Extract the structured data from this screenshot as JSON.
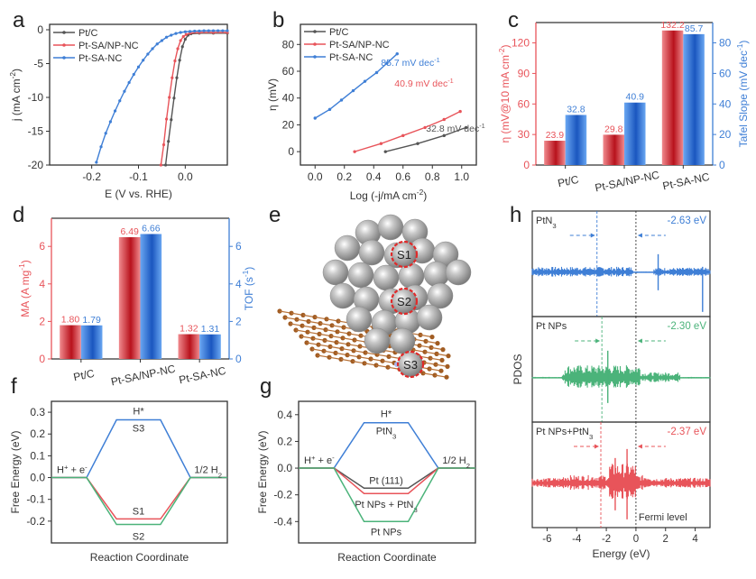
{
  "colors": {
    "black": "#555555",
    "red": "#e8545a",
    "blue": "#3f7fd6",
    "green": "#4bb37a",
    "bar_red": "#d9363e",
    "bar_blue": "#2e6fd3",
    "axis": "#333333"
  },
  "chart_data": [
    {
      "panel": "a",
      "type": "line",
      "xlabel": "E (V vs. RHE)",
      "ylabel": "j (mA cm-2)",
      "xlim": [
        -0.29,
        0.09
      ],
      "ylim": [
        -20,
        0.8
      ],
      "xticks": [
        "-0.2",
        "-0.1",
        "0.0"
      ],
      "xtick_values": [
        -0.2,
        -0.1,
        0.0
      ],
      "yticks": [
        "0",
        "-5",
        "-10",
        "-15",
        "-20"
      ],
      "ytick_values": [
        0,
        -5,
        -10,
        -15,
        -20
      ],
      "legend": [
        "Pt/C",
        "Pt-SA/NP-NC",
        "Pt-SA-NC"
      ],
      "legend_position": "top-left",
      "series": [
        {
          "name": "Pt/C",
          "color_key": "black",
          "x": [
            -0.042,
            -0.036,
            -0.03,
            -0.024,
            -0.018,
            -0.012,
            -0.006,
            0.0,
            0.006,
            0.012,
            0.03,
            0.06,
            0.09
          ],
          "y": [
            -20,
            -16.5,
            -13.3,
            -10.1,
            -7.1,
            -4.5,
            -2.5,
            -1.4,
            -0.8,
            -0.6,
            -0.5,
            -0.5,
            -0.5
          ]
        },
        {
          "name": "Pt-SA/NP-NC",
          "color_key": "red",
          "x": [
            -0.052,
            -0.046,
            -0.04,
            -0.034,
            -0.028,
            -0.022,
            -0.016,
            -0.01,
            -0.004,
            0.002,
            0.01,
            0.03,
            0.06,
            0.09
          ],
          "y": [
            -20,
            -17.0,
            -13.2,
            -10.0,
            -7.1,
            -4.6,
            -2.8,
            -1.6,
            -1.0,
            -0.7,
            -0.5,
            -0.4,
            -0.4,
            -0.4
          ]
        },
        {
          "name": "Pt-SA-NC",
          "color_key": "blue",
          "x": [
            -0.19,
            -0.18,
            -0.17,
            -0.16,
            -0.15,
            -0.14,
            -0.13,
            -0.12,
            -0.11,
            -0.1,
            -0.09,
            -0.08,
            -0.07,
            -0.06,
            -0.05,
            -0.04,
            -0.03,
            -0.02,
            -0.01,
            0.0,
            0.01,
            0.02,
            0.03,
            0.04,
            0.05,
            0.06,
            0.07,
            0.08,
            0.09
          ],
          "y": [
            -19.6,
            -17.3,
            -15.3,
            -13.6,
            -12.0,
            -10.5,
            -9.1,
            -7.8,
            -6.6,
            -5.5,
            -4.5,
            -3.6,
            -2.8,
            -2.1,
            -1.6,
            -1.1,
            -0.8,
            -0.55,
            -0.4,
            -0.3,
            -0.25,
            -0.2,
            -0.18,
            -0.15,
            -0.15,
            -0.14,
            -0.14,
            -0.14,
            -0.14
          ]
        }
      ]
    },
    {
      "panel": "b",
      "type": "line",
      "xlabel": "Log (-j/mA cm-2)",
      "ylabel": "η (mV)",
      "xlim": [
        -0.1,
        1.1
      ],
      "ylim": [
        -10,
        95
      ],
      "xticks": [
        "0.0",
        "0.2",
        "0.4",
        "0.6",
        "0.8",
        "1.0"
      ],
      "xtick_values": [
        0.0,
        0.2,
        0.4,
        0.6,
        0.8,
        1.0
      ],
      "yticks": [
        "0",
        "20",
        "40",
        "60",
        "80"
      ],
      "ytick_values": [
        0,
        20,
        40,
        60,
        80
      ],
      "legend": [
        "Pt/C",
        "Pt-SA/NP-NC",
        "Pt-SA-NC"
      ],
      "legend_position": "top-left",
      "series": [
        {
          "name": "Pt/C",
          "color_key": "black",
          "x": [
            0.48,
            0.7,
            0.88,
            1.03
          ],
          "y": [
            0,
            6,
            12,
            18
          ],
          "annotation": "32.8 mV dec-1"
        },
        {
          "name": "Pt-SA/NP-NC",
          "color_key": "red",
          "x": [
            0.27,
            0.45,
            0.6,
            0.75,
            0.88,
            0.99
          ],
          "y": [
            0,
            6,
            12,
            18,
            24,
            30
          ],
          "annotation": "40.9 mV dec-1"
        },
        {
          "name": "Pt-SA-NC",
          "color_key": "blue",
          "x": [
            0.0,
            0.1,
            0.18,
            0.26,
            0.34,
            0.42,
            0.49,
            0.56
          ],
          "y": [
            25,
            31.5,
            38.5,
            45.5,
            52.5,
            59,
            66,
            73
          ],
          "annotation": "85.7 mV dec-1"
        }
      ]
    },
    {
      "panel": "c",
      "type": "bar",
      "categories": [
        "Pt/C",
        "Pt-SA/NP-NC",
        "Pt-SA-NC"
      ],
      "ylabel_left": "η (mV@10 mA cm-2)",
      "ylabel_right": "Tafel Slope (mV dec-1)",
      "ylim_left": [
        0,
        140
      ],
      "ylim_right": [
        0,
        93.3
      ],
      "yticks_left": [
        "0",
        "30",
        "60",
        "90",
        "120"
      ],
      "ytick_values_left": [
        0,
        30,
        60,
        90,
        120
      ],
      "yticks_right": [
        "0",
        "20",
        "40",
        "60",
        "80"
      ],
      "ytick_values_right": [
        0,
        20,
        40,
        60,
        80
      ],
      "series": [
        {
          "name": "Overpotential",
          "axis": "left",
          "color_key": "bar_red",
          "values": [
            23.9,
            29.8,
            132.2
          ],
          "labels": [
            "23.9",
            "29.8",
            "132.2"
          ]
        },
        {
          "name": "Tafel Slope",
          "axis": "right",
          "color_key": "bar_blue",
          "values": [
            32.8,
            40.9,
            85.7
          ],
          "labels": [
            "32.8",
            "40.9",
            "85.7"
          ]
        }
      ]
    },
    {
      "panel": "d",
      "type": "bar",
      "categories": [
        "Pt/C",
        "Pt-SA/NP-NC",
        "Pt-SA-NC"
      ],
      "ylabel_left": "MA (A mg-1)",
      "ylabel_right": "TOF (s-1)",
      "ylim_left": [
        0,
        7.5
      ],
      "ylim_right": [
        0,
        7.5
      ],
      "yticks_left": [
        "0",
        "2",
        "4",
        "6"
      ],
      "ytick_values_left": [
        0,
        2,
        4,
        6
      ],
      "yticks_right": [
        "0",
        "2",
        "4",
        "6"
      ],
      "ytick_values_right": [
        0,
        2,
        4,
        6
      ],
      "series": [
        {
          "name": "MA",
          "axis": "left",
          "color_key": "bar_red",
          "values": [
            1.8,
            6.49,
            1.32
          ],
          "labels": [
            "1.80",
            "6.49",
            "1.32"
          ]
        },
        {
          "name": "TOF",
          "axis": "right",
          "color_key": "bar_blue",
          "values": [
            1.79,
            6.66,
            1.31
          ],
          "labels": [
            "1.79",
            "6.66",
            "1.31"
          ]
        }
      ]
    },
    {
      "panel": "f",
      "type": "line",
      "xlabel": "Reaction Coordinate",
      "ylabel": "Free Energy (eV)",
      "ylim": [
        -0.3,
        0.35
      ],
      "yticks": [
        "0.3",
        "0.2",
        "0.1",
        "0.0",
        "-0.1",
        "-0.2"
      ],
      "ytick_values": [
        0.3,
        0.2,
        0.1,
        0.0,
        -0.1,
        -0.2
      ],
      "state_labels": {
        "left": "H+ + e-",
        "middle": "H*",
        "right": "1/2 H2"
      },
      "series": [
        {
          "name": "S3",
          "color_key": "blue",
          "values": [
            0,
            0.265,
            0
          ]
        },
        {
          "name": "S1",
          "color_key": "red",
          "values": [
            0,
            -0.19,
            0
          ]
        },
        {
          "name": "S2",
          "color_key": "green",
          "values": [
            0,
            -0.215,
            0
          ]
        }
      ]
    },
    {
      "panel": "g",
      "type": "line",
      "xlabel": "Reaction Coordinate",
      "ylabel": "Free Energy (eV)",
      "ylim": [
        -0.56,
        0.5
      ],
      "yticks": [
        "0.4",
        "0.2",
        "0.0",
        "-0.2",
        "-0.4"
      ],
      "ytick_values": [
        0.4,
        0.2,
        0.0,
        -0.2,
        -0.4
      ],
      "state_labels": {
        "left": "H+ + e-",
        "middle": "H*",
        "right": "1/2 H2"
      },
      "series": [
        {
          "name": "PtN3",
          "color_key": "blue",
          "values": [
            0,
            0.34,
            0
          ]
        },
        {
          "name": "Pt (111)",
          "color_key": "black",
          "values": [
            0,
            -0.15,
            0
          ]
        },
        {
          "name": "Pt NPs + PtN3",
          "color_key": "red",
          "values": [
            0,
            -0.19,
            0
          ]
        },
        {
          "name": "Pt NPs",
          "color_key": "green",
          "values": [
            0,
            -0.4,
            0
          ]
        }
      ]
    },
    {
      "panel": "h",
      "type": "line",
      "xlabel": "Energy (eV)",
      "ylabel": "PDOS",
      "xlim": [
        -7,
        5
      ],
      "xticks": [
        "-6",
        "-4",
        "-2",
        "0",
        "2",
        "4"
      ],
      "xtick_values": [
        -6,
        -4,
        -2,
        0,
        2,
        4
      ],
      "fermi_label": "Fermi level",
      "fermi_level": 0,
      "subpanels": [
        {
          "name": "PtN3",
          "color_key": "blue",
          "d_band_center": -2.63,
          "center_label": "-2.63 eV",
          "activity": "low-dense"
        },
        {
          "name": "Pt NPs",
          "color_key": "green",
          "d_band_center": -2.3,
          "center_label": "-2.30 eV",
          "activity": "mid"
        },
        {
          "name": "Pt NPs+PtN3",
          "color_key": "red",
          "d_band_center": -2.37,
          "center_label": "-2.37 eV",
          "activity": "high"
        }
      ]
    }
  ],
  "panel_e": {
    "title": "e",
    "site_labels": [
      "S1",
      "S2",
      "S3"
    ]
  },
  "panel_letters": [
    "a",
    "b",
    "c",
    "d",
    "e",
    "f",
    "g",
    "h"
  ]
}
